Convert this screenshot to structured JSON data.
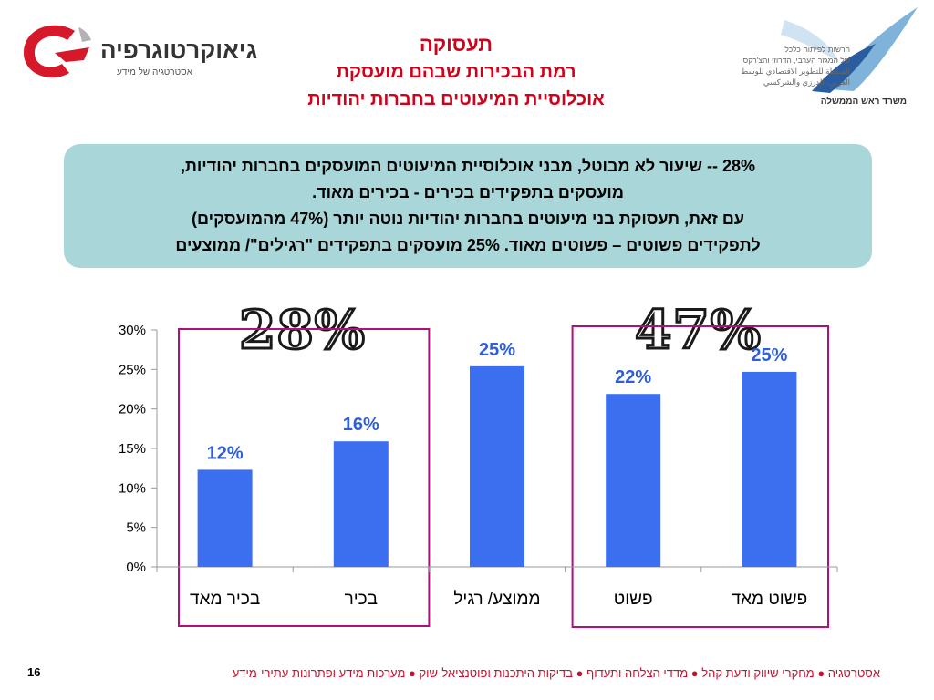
{
  "header": {
    "title": "תעסוקה",
    "subtitle_line1": "רמת הבכירות שבהם מועסקת",
    "subtitle_line2": "אוכלוסיית המיעוטים בחברות יהודיות"
  },
  "logos": {
    "left_brand": "גיאוקרטוגרפיה",
    "left_tagline": "אסטרטגיה של מידע",
    "right_org_line1": "הרשות לפיתוח כלכלי",
    "right_org_line2": "של המגזר הערבי, הדרוזי והצ'רקסי",
    "right_org_line3": "السلطة للتطوير الاقتصادي للوسط",
    "right_org_line4": "العربي، الدرزي والشركسي",
    "right_caption": "משרד ראש הממשלה"
  },
  "callout": {
    "line1": "28% -- שיעור לא מבוטל, מבני אוכלוסיית המיעוטים המועסקים בחברות יהודיות,",
    "line2": "מועסקים בתפקידים בכירים - בכירים מאוד.",
    "line3": "עם זאת, תעסוקת בני מיעוטים בחברות יהודיות נוטה יותר (47% מהמועסקים)",
    "line4": "לתפקידים פשוטים – פשוטים מאוד. 25% מועסקים בתפקידים \"רגילים\"/ ממוצעים"
  },
  "groups": {
    "senior_total": "28%",
    "simple_total": "47%"
  },
  "chart_data": {
    "type": "bar",
    "categories": [
      "בכיר מאד",
      "בכיר",
      "ממוצע/ רגיל",
      "פשוט",
      "פשוט מאד"
    ],
    "values": [
      12.3,
      15.9,
      25.4,
      21.9,
      24.7
    ],
    "data_labels": [
      "12%",
      "16%",
      "25%",
      "22%",
      "25%"
    ],
    "yticks": [
      "0%",
      "5%",
      "10%",
      "15%",
      "20%",
      "25%",
      "30%"
    ],
    "ylim": [
      0,
      30
    ],
    "grid": false,
    "bar_color": "#3b6ff0",
    "label_color": "#2e5fd8",
    "highlight_color": "#b0107a"
  },
  "footer": {
    "tagline": "אסטרטגיה ● מחקרי שיווק ודעת קהל ● מדדי הצלחה ותעדוף ● בדיקות היתכנות ופוטנציאל-שוק ● מערכות מידע ופתרונות עתירי-מידע",
    "page_number": "16"
  }
}
